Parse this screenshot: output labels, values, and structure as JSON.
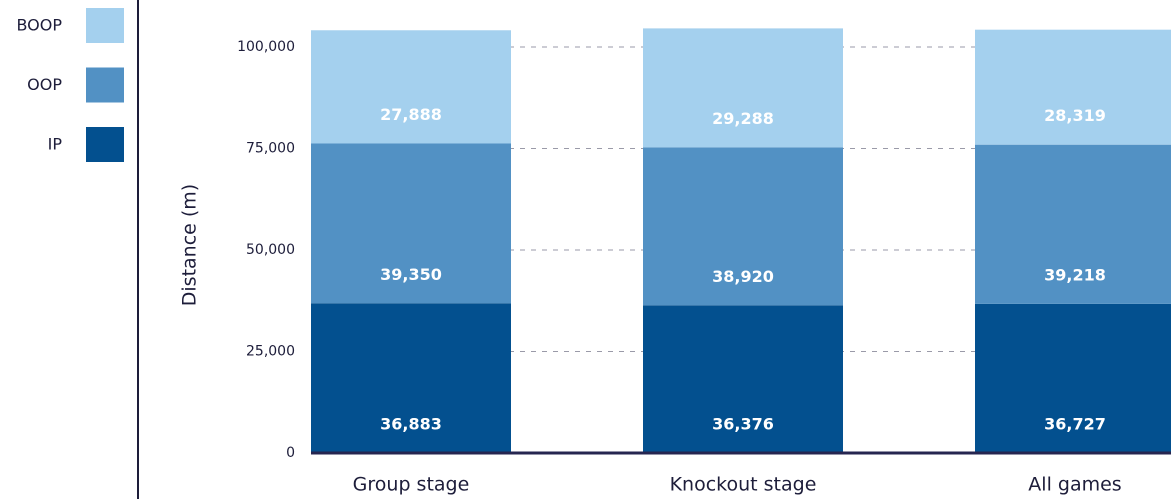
{
  "chart_data": {
    "type": "stacked_bar",
    "ylabel": "Distance (m)",
    "categories": [
      "Group stage",
      "Knockout stage",
      "All games"
    ],
    "series": [
      {
        "name": "IP",
        "color": "#03508f",
        "values": [
          36883,
          36376,
          36727
        ],
        "value_labels": [
          "36,883",
          "36,376",
          "36,727"
        ]
      },
      {
        "name": "OOP",
        "color": "#5291c4",
        "values": [
          39350,
          38920,
          39218
        ],
        "value_labels": [
          "39,350",
          "38,920",
          "39,218"
        ]
      },
      {
        "name": "BOOP",
        "color": "#a4d0ee",
        "values": [
          27888,
          29288,
          28319
        ],
        "value_labels": [
          "27,888",
          "29,288",
          "28,319"
        ]
      }
    ],
    "ylim": [
      0,
      110000
    ],
    "yticks": [
      0,
      {
        "value": 25000,
        "label": "25,000"
      },
      {
        "value": 50000,
        "label": "50,000"
      },
      {
        "value": 75000,
        "label": "75,000"
      },
      {
        "value": 100000,
        "label": "100,000"
      }
    ],
    "grid": true,
    "legend": "left"
  }
}
